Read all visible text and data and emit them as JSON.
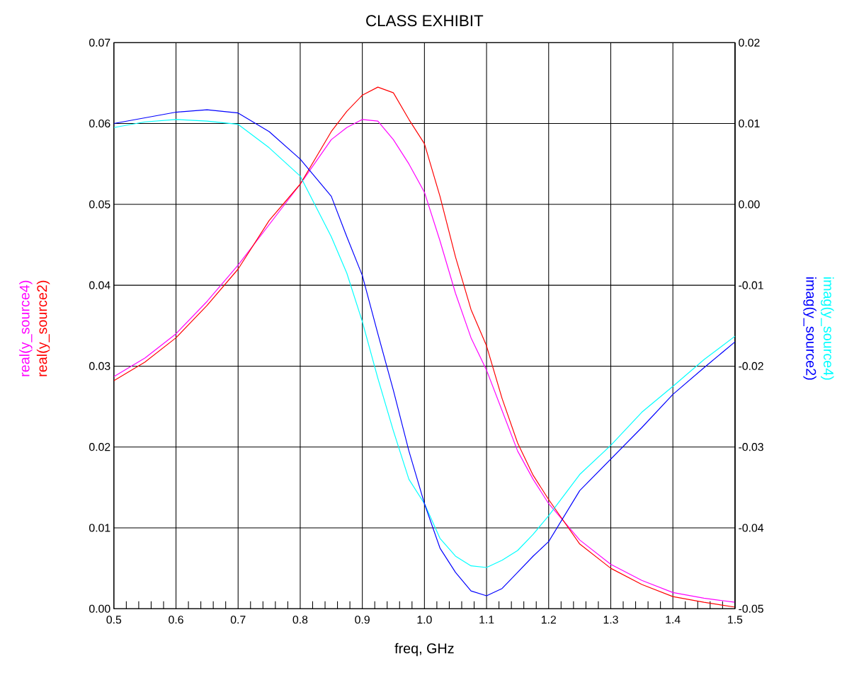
{
  "chart_data": {
    "type": "line",
    "title": "CLASS EXHIBIT",
    "xlabel": "freq, GHz",
    "x": [
      0.5,
      0.55,
      0.6,
      0.65,
      0.7,
      0.75,
      0.8,
      0.85,
      0.875,
      0.9,
      0.925,
      0.95,
      0.975,
      1.0,
      1.025,
      1.05,
      1.075,
      1.1,
      1.125,
      1.15,
      1.175,
      1.2,
      1.25,
      1.3,
      1.35,
      1.4,
      1.45,
      1.5
    ],
    "series": [
      {
        "name": "real(y_source4)",
        "color": "#ff00ff",
        "values": [
          0.0287,
          0.031,
          0.034,
          0.038,
          0.0425,
          0.0475,
          0.0525,
          0.058,
          0.0595,
          0.0605,
          0.0603,
          0.058,
          0.055,
          0.0515,
          0.0455,
          0.039,
          0.0335,
          0.0295,
          0.0245,
          0.0195,
          0.016,
          0.013,
          0.0085,
          0.0055,
          0.0035,
          0.002,
          0.0013,
          0.0008
        ]
      },
      {
        "name": "real(y_source2)",
        "color": "#ff0000",
        "values": [
          0.0282,
          0.0305,
          0.0335,
          0.0375,
          0.042,
          0.048,
          0.0525,
          0.059,
          0.0615,
          0.0635,
          0.0645,
          0.0638,
          0.0605,
          0.0575,
          0.051,
          0.0435,
          0.037,
          0.0325,
          0.026,
          0.0205,
          0.0165,
          0.0135,
          0.008,
          0.005,
          0.003,
          0.0015,
          0.0008,
          0.0002
        ]
      },
      {
        "name": "imag(y_source4)",
        "color": "#00ffff",
        "axis": "y2",
        "values": [
          0.0095,
          0.0102,
          0.0105,
          0.0103,
          0.0099,
          0.007,
          0.0035,
          -0.004,
          -0.0085,
          -0.0145,
          -0.0215,
          -0.028,
          -0.034,
          -0.037,
          -0.0413,
          -0.0435,
          -0.0447,
          -0.0449,
          -0.044,
          -0.0428,
          -0.0408,
          -0.0385,
          -0.0334,
          -0.0298,
          -0.0257,
          -0.0225,
          -0.0192,
          -0.0163
        ]
      },
      {
        "name": "imag(y_source2)",
        "color": "#0000ff",
        "axis": "y2",
        "values": [
          0.01,
          0.0107,
          0.0114,
          0.0117,
          0.0113,
          0.009,
          0.0056,
          0.001,
          -0.004,
          -0.0088,
          -0.016,
          -0.023,
          -0.0305,
          -0.037,
          -0.0425,
          -0.0455,
          -0.0478,
          -0.0484,
          -0.0475,
          -0.0455,
          -0.0435,
          -0.0417,
          -0.0354,
          -0.0315,
          -0.0276,
          -0.0235,
          -0.0202,
          -0.017
        ]
      }
    ],
    "xlim": [
      0.5,
      1.5
    ],
    "xticks": [
      {
        "value": 0.5,
        "label": "0.5"
      },
      {
        "value": 0.6,
        "label": "0.6"
      },
      {
        "value": 0.7,
        "label": "0.7"
      },
      {
        "value": 0.8,
        "label": "0.8"
      },
      {
        "value": 0.9,
        "label": "0.9"
      },
      {
        "value": 1.0,
        "label": "1.0"
      },
      {
        "value": 1.1,
        "label": "1.1"
      },
      {
        "value": 1.2,
        "label": "1.2"
      },
      {
        "value": 1.3,
        "label": "1.3"
      },
      {
        "value": 1.4,
        "label": "1.4"
      },
      {
        "value": 1.5,
        "label": "1.5"
      }
    ],
    "ylim": [
      0,
      0.07
    ],
    "yticks": [
      {
        "value": 0,
        "label": "0.00"
      },
      {
        "value": 0.01,
        "label": "0.01"
      },
      {
        "value": 0.02,
        "label": "0.02"
      },
      {
        "value": 0.03,
        "label": "0.03"
      },
      {
        "value": 0.04,
        "label": "0.04"
      },
      {
        "value": 0.05,
        "label": "0.05"
      },
      {
        "value": 0.06,
        "label": "0.06"
      },
      {
        "value": 0.07,
        "label": "0.07"
      }
    ],
    "y2lim": [
      -0.05,
      0.02
    ],
    "y2ticks": [
      {
        "value": -0.05,
        "label": "-0.05"
      },
      {
        "value": -0.04,
        "label": "-0.04"
      },
      {
        "value": -0.03,
        "label": "-0.03"
      },
      {
        "value": -0.02,
        "label": "-0.02"
      },
      {
        "value": -0.01,
        "label": "-0.01"
      },
      {
        "value": 0,
        "label": "0.00"
      },
      {
        "value": 0.01,
        "label": "0.01"
      },
      {
        "value": 0.02,
        "label": "0.02"
      }
    ],
    "grid": true
  }
}
